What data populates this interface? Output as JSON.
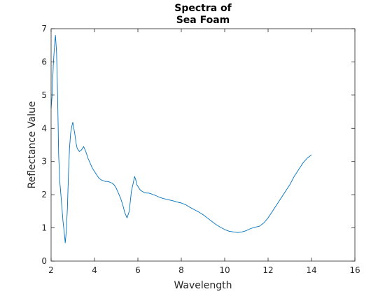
{
  "chart_data": {
    "type": "line",
    "title_lines": [
      "Spectra of",
      "Sea Foam"
    ],
    "xlabel": "Wavelength",
    "ylabel": "Reflectance Value",
    "xlim": [
      2,
      16
    ],
    "ylim": [
      0,
      7
    ],
    "xticks": [
      2,
      4,
      6,
      8,
      10,
      12,
      14,
      16
    ],
    "yticks": [
      0,
      1,
      2,
      3,
      4,
      5,
      6,
      7
    ],
    "grid": false,
    "box": true,
    "line_color": "#0072BD",
    "series": [
      {
        "x": [
          2.0,
          2.05,
          2.1,
          2.15,
          2.2,
          2.25,
          2.3,
          2.35,
          2.4,
          2.45,
          2.5,
          2.55,
          2.6,
          2.65,
          2.7,
          2.75,
          2.8,
          2.85,
          2.9,
          2.95,
          3.0,
          3.05,
          3.1,
          3.15,
          3.2,
          3.3,
          3.4,
          3.5,
          3.6,
          3.7,
          3.8,
          3.9,
          4.0,
          4.1,
          4.2,
          4.3,
          4.4,
          4.5,
          4.6,
          4.7,
          4.8,
          4.9,
          5.0,
          5.1,
          5.2,
          5.3,
          5.4,
          5.5,
          5.6,
          5.7,
          5.8,
          5.85,
          5.9,
          5.95,
          6.0,
          6.05,
          6.1,
          6.15,
          6.2,
          6.25,
          6.3,
          6.4,
          6.5,
          6.6,
          6.7,
          6.8,
          6.9,
          7.0,
          7.2,
          7.4,
          7.6,
          7.8,
          8.0,
          8.2,
          8.4,
          8.6,
          8.8,
          9.0,
          9.2,
          9.4,
          9.6,
          9.8,
          10.0,
          10.2,
          10.4,
          10.6,
          10.8,
          11.0,
          11.1,
          11.2,
          11.4,
          11.6,
          11.8,
          12.0,
          12.2,
          12.4,
          12.6,
          12.8,
          13.0,
          13.2,
          13.4,
          13.6,
          13.8,
          14.0
        ],
        "y": [
          4.6,
          5.0,
          5.9,
          6.4,
          6.8,
          6.3,
          5.0,
          3.2,
          2.4,
          2.0,
          1.6,
          1.2,
          0.9,
          0.55,
          0.9,
          1.6,
          2.6,
          3.4,
          3.85,
          4.05,
          4.18,
          4.0,
          3.8,
          3.55,
          3.4,
          3.3,
          3.35,
          3.45,
          3.3,
          3.1,
          2.95,
          2.8,
          2.7,
          2.6,
          2.5,
          2.45,
          2.42,
          2.4,
          2.4,
          2.38,
          2.35,
          2.3,
          2.2,
          2.05,
          1.9,
          1.7,
          1.45,
          1.3,
          1.5,
          2.1,
          2.4,
          2.55,
          2.45,
          2.3,
          2.25,
          2.2,
          2.15,
          2.12,
          2.1,
          2.08,
          2.06,
          2.05,
          2.05,
          2.03,
          2.0,
          1.98,
          1.95,
          1.92,
          1.88,
          1.85,
          1.82,
          1.78,
          1.75,
          1.7,
          1.62,
          1.55,
          1.48,
          1.4,
          1.3,
          1.2,
          1.1,
          1.02,
          0.95,
          0.9,
          0.88,
          0.86,
          0.88,
          0.92,
          0.95,
          0.98,
          1.02,
          1.05,
          1.15,
          1.3,
          1.5,
          1.7,
          1.9,
          2.1,
          2.3,
          2.55,
          2.75,
          2.95,
          3.1,
          3.2
        ]
      }
    ]
  }
}
